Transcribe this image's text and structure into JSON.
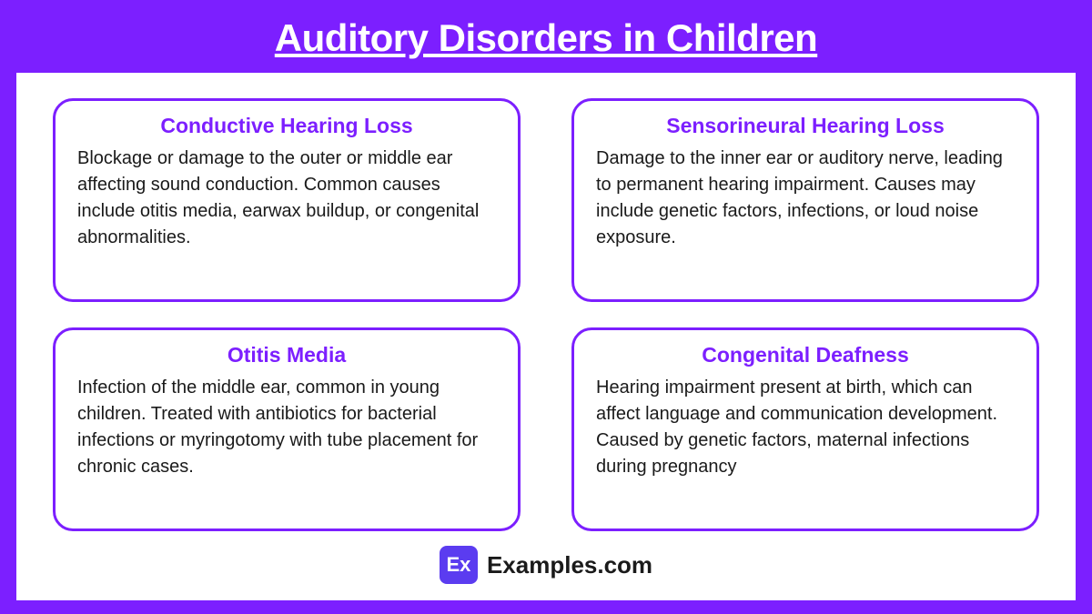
{
  "header": {
    "title": "Auditory Disorders in Children"
  },
  "styling": {
    "primary_color": "#7c1fff",
    "background_color": "#ffffff",
    "text_color": "#1a1a1a",
    "card_border_width": 3,
    "card_border_radius": 22,
    "title_fontsize": 42,
    "card_title_fontsize": 23,
    "card_text_fontsize": 20
  },
  "cards": [
    {
      "title": "Conductive Hearing Loss",
      "text": "Blockage or damage to the outer or middle ear affecting sound conduction. Common causes include otitis media, earwax buildup, or congenital abnormalities."
    },
    {
      "title": "Sensorineural Hearing Loss",
      "text": "Damage to the inner ear or auditory nerve, leading to permanent hearing impairment. Causes may include genetic factors, infections, or loud noise exposure."
    },
    {
      "title": "Otitis Media",
      "text": "Infection of the middle ear, common in young children. Treated with antibiotics for bacterial infections or myringotomy with tube placement for chronic cases."
    },
    {
      "title": "Congenital Deafness",
      "text": "Hearing impairment present at birth, which can affect language and communication development. Caused by genetic factors, maternal infections during pregnancy"
    }
  ],
  "footer": {
    "badge": "Ex",
    "text": "Examples.com"
  }
}
